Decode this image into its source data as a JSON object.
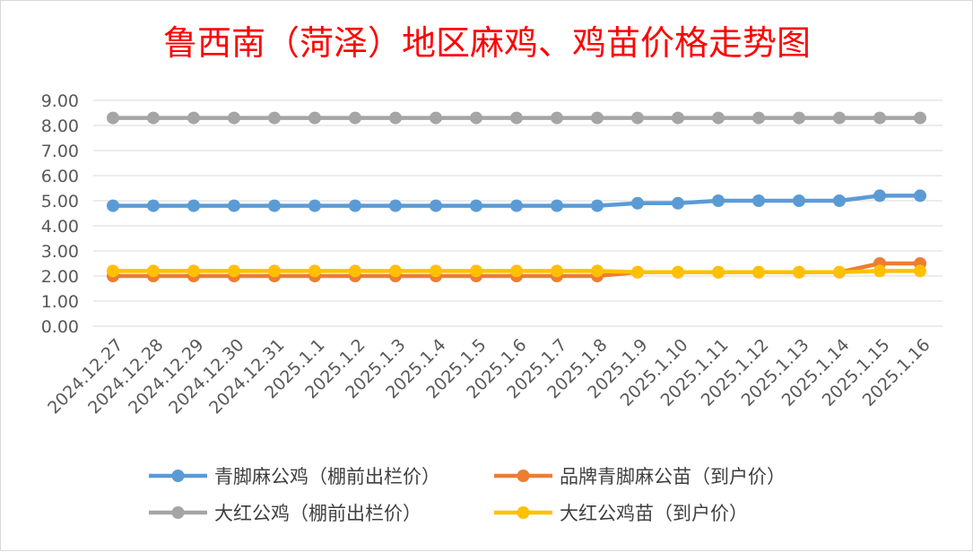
{
  "chart_data": {
    "type": "line",
    "title": "鲁西南（菏泽）地区麻鸡、鸡苗价格走势图",
    "xlabel": "",
    "ylabel": "",
    "ylim": [
      0,
      9
    ],
    "ytick_step": 1,
    "ytick_labels": [
      "0.00",
      "1.00",
      "2.00",
      "3.00",
      "4.00",
      "5.00",
      "6.00",
      "7.00",
      "8.00",
      "9.00"
    ],
    "grid": true,
    "legend_position": "bottom",
    "x": [
      "2024.12.27",
      "2024.12.28",
      "2024.12.29",
      "2024.12.30",
      "2024.12.31",
      "2025.1.1",
      "2025.1.2",
      "2025.1.3",
      "2025.1.4",
      "2025.1.5",
      "2025.1.6",
      "2025.1.7",
      "2025.1.8",
      "2025.1.9",
      "2025.1.10",
      "2025.1.11",
      "2025.1.12",
      "2025.1.13",
      "2025.1.14",
      "2025.1.15",
      "2025.1.16"
    ],
    "series": [
      {
        "name": "青脚麻公鸡（棚前出栏价）",
        "color": "#5b9bd5",
        "values": [
          4.8,
          4.8,
          4.8,
          4.8,
          4.8,
          4.8,
          4.8,
          4.8,
          4.8,
          4.8,
          4.8,
          4.8,
          4.8,
          4.9,
          4.9,
          5.0,
          5.0,
          5.0,
          5.0,
          5.2,
          5.2
        ]
      },
      {
        "name": "品牌青脚麻公苗（到户价）",
        "color": "#ed7d31",
        "values": [
          2.0,
          2.0,
          2.0,
          2.0,
          2.0,
          2.0,
          2.0,
          2.0,
          2.0,
          2.0,
          2.0,
          2.0,
          2.0,
          2.15,
          2.15,
          2.15,
          2.15,
          2.15,
          2.15,
          2.5,
          2.5
        ]
      },
      {
        "name": "大红公鸡（棚前出栏价）",
        "color": "#a5a5a5",
        "values": [
          8.3,
          8.3,
          8.3,
          8.3,
          8.3,
          8.3,
          8.3,
          8.3,
          8.3,
          8.3,
          8.3,
          8.3,
          8.3,
          8.3,
          8.3,
          8.3,
          8.3,
          8.3,
          8.3,
          8.3,
          8.3
        ]
      },
      {
        "name": "大红公鸡苗（到户价）",
        "color": "#ffc000",
        "values": [
          2.2,
          2.2,
          2.2,
          2.2,
          2.2,
          2.2,
          2.2,
          2.2,
          2.2,
          2.2,
          2.2,
          2.2,
          2.2,
          2.15,
          2.15,
          2.15,
          2.15,
          2.15,
          2.15,
          2.2,
          2.2
        ]
      }
    ],
    "draw_order": [
      0,
      2,
      1,
      3
    ],
    "legend_layout": [
      [
        0,
        1
      ],
      [
        2,
        3
      ]
    ]
  }
}
